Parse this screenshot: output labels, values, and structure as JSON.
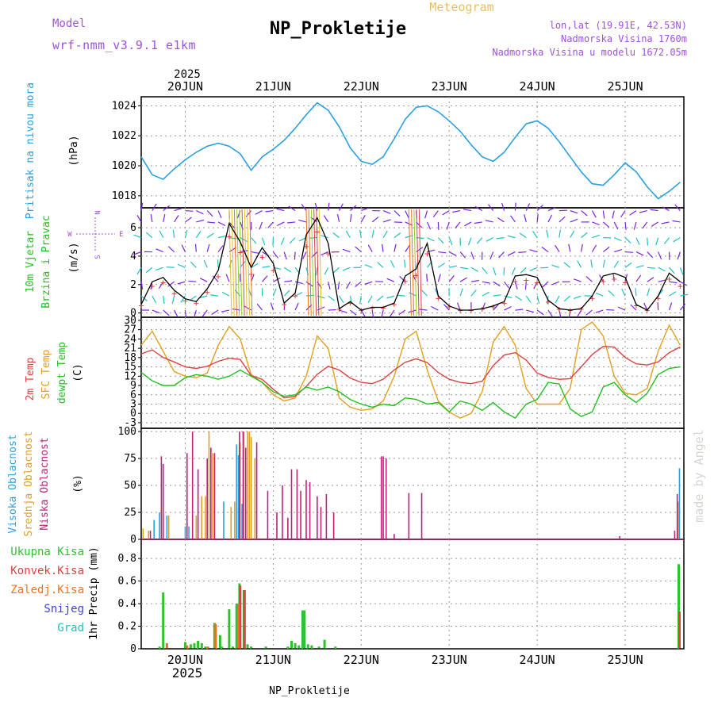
{
  "header": {
    "title": "NP_Prokletije",
    "product": "Meteogram",
    "model_label": "Model",
    "model_name": "wrf-nmm_v3.9.1  e1km",
    "coords": "lon,lat (19.91E, 42.53N)",
    "elevation": "Nadmorska Visina 1760m",
    "model_elevation": "Nadmorska Visina u modelu 1672.05m",
    "footer": "NP_Prokletije",
    "watermark": "made by Angel"
  },
  "colors": {
    "pressure": "#2aa0e0",
    "wind_speed": "#000000",
    "temp2m": "#e04040",
    "sfc_temp": "#e0a020",
    "dewpoint": "#20c020",
    "high_cloud": "#2aa0e0",
    "mid_cloud": "#e0a020",
    "low_cloud": "#c0207a",
    "total_precip": "#30c030",
    "conv_precip": "#e04040",
    "frozen_precip": "#f07020",
    "snow": "#4040e0",
    "hail": "#20c0c0",
    "grid": "#999999"
  },
  "chart_data": [
    {
      "type": "line",
      "panel": "pressure",
      "ylabel": [
        "Pritisak na nivou mora",
        "(hPa)"
      ],
      "ylim": [
        1017.2,
        1024.6
      ],
      "yticks": [
        1018,
        1020,
        1022,
        1024
      ],
      "grid": true,
      "x_top_year": "2025",
      "xticks_top": [
        "20JUN",
        "21JUN",
        "22JUN",
        "23JUN",
        "24JUN",
        "25JUN"
      ],
      "series": [
        {
          "x": [
            0,
            3,
            6,
            9,
            12,
            15,
            18,
            21,
            24,
            27,
            30,
            33,
            36,
            39,
            42,
            45,
            48,
            51,
            54,
            57,
            60,
            63,
            66,
            69,
            72,
            75,
            78,
            81,
            84,
            87,
            90,
            93,
            96,
            99,
            102,
            105,
            108,
            111,
            114,
            117,
            120,
            123,
            126,
            129,
            132,
            135,
            138,
            141,
            144,
            147
          ],
          "values": [
            1020.6,
            1019.4,
            1019.1,
            1019.8,
            1020.4,
            1020.9,
            1021.3,
            1021.5,
            1021.3,
            1020.8,
            1019.7,
            1020.6,
            1021.1,
            1021.7,
            1022.5,
            1023.4,
            1024.2,
            1023.7,
            1022.6,
            1021.2,
            1020.3,
            1020.1,
            1020.6,
            1021.8,
            1023.1,
            1023.9,
            1024.0,
            1023.6,
            1023.0,
            1022.3,
            1021.4,
            1020.6,
            1020.3,
            1020.9,
            1021.9,
            1022.8,
            1023.0,
            1022.5,
            1021.6,
            1020.6,
            1019.6,
            1018.8,
            1018.7,
            1019.4,
            1020.2,
            1019.6,
            1018.6,
            1017.8,
            1018.3,
            1018.9
          ]
        }
      ]
    },
    {
      "type": "line",
      "panel": "wind",
      "ylabel": [
        "10m Vjetar",
        "Brzina i Pravac",
        "(m/s)"
      ],
      "compass": [
        "N",
        "W",
        "E",
        "S"
      ],
      "ylim": [
        -0.3,
        7.4
      ],
      "yticks": [
        0,
        2,
        4,
        6
      ],
      "grid": true,
      "series": [
        {
          "name": "wind speed",
          "x": [
            0,
            3,
            6,
            9,
            12,
            15,
            18,
            21,
            24,
            27,
            30,
            33,
            36,
            39,
            42,
            45,
            48,
            51,
            54,
            57,
            60,
            63,
            66,
            69,
            72,
            75,
            78,
            81,
            84,
            87,
            90,
            93,
            96,
            99,
            102,
            105,
            108,
            111,
            114,
            117,
            120,
            123,
            126,
            129,
            132,
            135,
            138,
            141,
            144,
            147
          ],
          "values": [
            0.6,
            2.2,
            2.5,
            1.6,
            1.0,
            0.8,
            1.7,
            3.0,
            6.3,
            5.0,
            3.2,
            4.6,
            3.5,
            0.7,
            1.4,
            5.5,
            6.7,
            4.9,
            0.3,
            0.8,
            0.2,
            0.4,
            0.4,
            0.7,
            2.6,
            3.1,
            4.9,
            1.2,
            0.5,
            0.2,
            0.2,
            0.3,
            0.5,
            0.8,
            2.6,
            2.7,
            2.5,
            0.9,
            0.3,
            0.2,
            0.3,
            1.2,
            2.6,
            2.8,
            2.5,
            0.6,
            0.2,
            1.2,
            2.8,
            2.2
          ]
        }
      ]
    },
    {
      "type": "line",
      "panel": "temperature",
      "ylabel": [
        "2m Temp",
        "SFC Temp",
        "dewpt Temp",
        "(C)"
      ],
      "ylim": [
        -4.8,
        31
      ],
      "yticks": [
        -3,
        0,
        3,
        6,
        9,
        12,
        15,
        18,
        21,
        24,
        27,
        30
      ],
      "grid": true,
      "series": [
        {
          "name": "2m Temp",
          "x": [
            0,
            3,
            6,
            9,
            12,
            15,
            18,
            21,
            24,
            27,
            30,
            33,
            36,
            39,
            42,
            45,
            48,
            51,
            54,
            57,
            60,
            63,
            66,
            69,
            72,
            75,
            78,
            81,
            84,
            87,
            90,
            93,
            96,
            99,
            102,
            105,
            108,
            111,
            114,
            117,
            120,
            123,
            126,
            129,
            132,
            135,
            138,
            141,
            144,
            147
          ],
          "values": [
            19.2,
            20.5,
            18.0,
            16.6,
            15.0,
            14.5,
            15.2,
            16.8,
            17.8,
            17.4,
            12.2,
            11.0,
            7.8,
            5.0,
            5.5,
            8.7,
            12.6,
            15.2,
            14.0,
            11.4,
            10.0,
            9.6,
            11.0,
            14.0,
            16.5,
            17.6,
            16.4,
            13.2,
            11.0,
            10.0,
            9.6,
            10.4,
            15.4,
            18.8,
            19.6,
            17.2,
            13.0,
            11.6,
            11.0,
            11.2,
            15.0,
            19.0,
            21.6,
            21.4,
            18.0,
            16.0,
            15.6,
            16.6,
            19.6,
            21.4
          ]
        },
        {
          "name": "SFC Temp",
          "x": [
            0,
            3,
            6,
            9,
            12,
            15,
            18,
            21,
            24,
            27,
            30,
            33,
            36,
            39,
            42,
            45,
            48,
            51,
            54,
            57,
            60,
            63,
            66,
            69,
            72,
            75,
            78,
            81,
            84,
            87,
            90,
            93,
            96,
            99,
            102,
            105,
            108,
            111,
            114,
            117,
            120,
            123,
            126,
            129,
            132,
            135,
            138,
            141,
            144,
            147
          ],
          "values": [
            22.0,
            26.5,
            20.0,
            13.5,
            12.0,
            11.5,
            13.0,
            22.0,
            28.0,
            24.0,
            12.5,
            10.0,
            6.0,
            4.0,
            5.0,
            12.0,
            25.0,
            21.0,
            5.0,
            2.0,
            1.0,
            1.5,
            4.0,
            12.0,
            24.0,
            26.5,
            14.0,
            4.0,
            0.5,
            -1.5,
            0.0,
            7.0,
            23.0,
            28.0,
            22.0,
            8.0,
            3.0,
            3.0,
            3.0,
            8.0,
            27.0,
            29.5,
            25.0,
            12.0,
            6.5,
            6.0,
            8.0,
            20.0,
            28.5,
            22.0
          ]
        },
        {
          "name": "dewpt Temp",
          "x": [
            0,
            3,
            6,
            9,
            12,
            15,
            18,
            21,
            24,
            27,
            30,
            33,
            36,
            39,
            42,
            45,
            48,
            51,
            54,
            57,
            60,
            63,
            66,
            69,
            72,
            75,
            78,
            81,
            84,
            87,
            90,
            93,
            96,
            99,
            102,
            105,
            108,
            111,
            114,
            117,
            120,
            123,
            126,
            129,
            132,
            135,
            138,
            141,
            144,
            147
          ],
          "values": [
            13.2,
            10.5,
            9.0,
            9.0,
            11.5,
            12.5,
            12.0,
            11.0,
            12.0,
            14.0,
            12.0,
            10.0,
            7.0,
            5.5,
            6.0,
            8.5,
            7.5,
            8.5,
            7.0,
            4.5,
            3.0,
            2.0,
            3.0,
            2.5,
            5.0,
            4.5,
            3.0,
            3.5,
            0.5,
            4.0,
            3.0,
            1.0,
            3.5,
            0.5,
            -1.5,
            3.0,
            4.5,
            10.0,
            9.5,
            1.5,
            -1.0,
            0.5,
            8.5,
            10.0,
            6.0,
            3.5,
            6.5,
            12.5,
            14.5,
            15.0
          ]
        }
      ]
    },
    {
      "type": "bar",
      "panel": "cloud",
      "ylabel": [
        "Visoka Oblacnost",
        "Srednja Oblacnost",
        "Niska Oblacnost",
        "(%)"
      ],
      "ylim": [
        0,
        103
      ],
      "yticks": [
        0,
        25,
        50,
        75,
        100
      ],
      "grid": true,
      "series": [
        {
          "name": "Visoka Oblacnost",
          "x": [
            3.5,
            5,
            7,
            12,
            13,
            22.5,
            26,
            26.5,
            27.5,
            146.8
          ],
          "values": [
            18,
            25,
            22,
            12,
            12,
            35,
            88,
            78,
            33,
            66
          ]
        },
        {
          "name": "Srednja Oblacnost",
          "x": [
            0.5,
            2,
            7.5,
            15,
            16.5,
            17.5,
            18.5,
            19.5,
            24.5,
            25.5,
            27,
            28,
            29,
            29.5,
            30,
            31,
            146.5
          ],
          "values": [
            10,
            8,
            22,
            22,
            40,
            40,
            100,
            80,
            30,
            35,
            90,
            100,
            100,
            100,
            95,
            75,
            35
          ]
        },
        {
          "name": "Niska Oblacnost",
          "x": [
            2.5,
            5.5,
            6,
            12.5,
            14,
            15.5,
            18,
            19,
            20,
            26.8,
            27.8,
            28.5,
            31.5,
            34.5,
            37,
            38.5,
            40,
            41,
            42.5,
            43.5,
            45,
            46,
            48,
            49,
            50.5,
            52.5,
            65.5,
            66,
            66.8,
            69,
            73,
            76.5,
            130.5,
            145.5,
            146.2
          ],
          "values": [
            8,
            77,
            70,
            80,
            100,
            65,
            75,
            85,
            80,
            100,
            100,
            85,
            90,
            45,
            25,
            50,
            20,
            65,
            65,
            45,
            55,
            53,
            40,
            30,
            42,
            25,
            77,
            77,
            75,
            5,
            43,
            43,
            3,
            8,
            42
          ]
        }
      ]
    },
    {
      "type": "bar",
      "panel": "precip",
      "ylabel": [
        "1hr Precip (mm)"
      ],
      "legend": [
        "Ukupna Kisa",
        "Konvek.Kisa",
        "Zaledj.Kisa",
        "Snijeg",
        "Grad"
      ],
      "ylim": [
        0,
        0.97
      ],
      "yticks": [
        0,
        0.2,
        0.4,
        0.6,
        0.8
      ],
      "grid": true,
      "x_bottom_year": "2025",
      "xticks_bottom": [
        "20JUN",
        "21JUN",
        "22JUN",
        "23JUN",
        "24JUN",
        "25JUN"
      ],
      "series": [
        {
          "name": "Ukupna Kisa",
          "x": [
            5,
            6,
            12,
            13.5,
            14.5,
            15.5,
            16.5,
            17.5,
            20,
            21.5,
            22,
            24,
            25,
            26,
            26.8,
            28,
            29,
            30,
            34,
            40,
            41,
            42,
            43,
            44,
            44.5,
            45.5,
            46.5,
            48.5,
            50,
            53,
            146.6
          ],
          "values": [
            0.02,
            0.5,
            0.06,
            0.04,
            0.05,
            0.07,
            0.05,
            0.02,
            0.23,
            0.12,
            0.02,
            0.35,
            0.02,
            0.4,
            0.58,
            0.52,
            0.04,
            0.02,
            0.02,
            0.02,
            0.07,
            0.05,
            0.03,
            0.34,
            0.34,
            0.04,
            0.03,
            0.02,
            0.08,
            0.02,
            0.75
          ]
        },
        {
          "name": "Konvek.Kisa",
          "x": [
            27,
            28.2,
            146.8
          ],
          "values": [
            0.56,
            0.52,
            0.33
          ]
        },
        {
          "name": "Zaledj.Kisa",
          "x": [
            7,
            12.5,
            18.2,
            20.3,
            26.5
          ],
          "values": [
            0.05,
            0.03,
            0.02,
            0.22,
            0.4
          ]
        }
      ]
    }
  ]
}
